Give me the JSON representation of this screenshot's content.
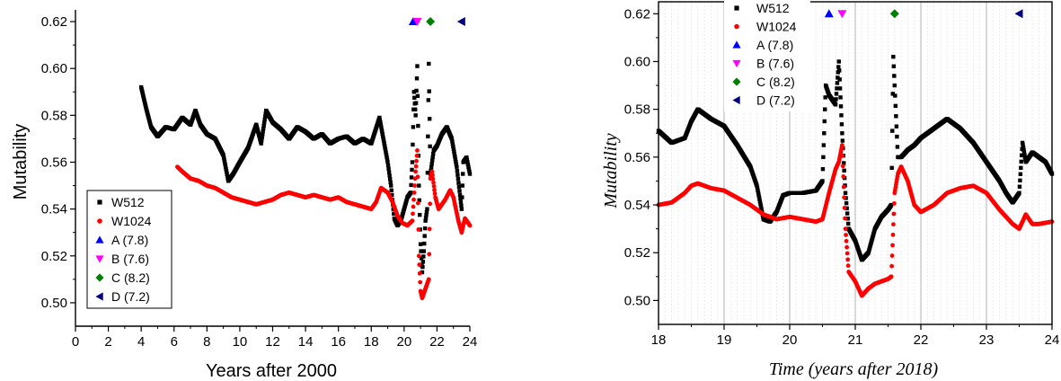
{
  "colors": {
    "W512": "#000000",
    "W1024": "#ff0000",
    "A": "#0000ff",
    "B": "#ff00ff",
    "C": "#008000",
    "D": "#000080"
  },
  "chart_data": [
    {
      "type": "scatter",
      "title": "",
      "xlabel": "Years after 2000",
      "ylabel": "Mutability",
      "xlim": [
        0,
        24
      ],
      "ylim": [
        0.49,
        0.625
      ],
      "xticks": [
        "0",
        "2",
        "4",
        "6",
        "8",
        "10",
        "12",
        "14",
        "16",
        "18",
        "20",
        "22",
        "24"
      ],
      "yticks": [
        "0.50",
        "0.52",
        "0.54",
        "0.56",
        "0.58",
        "0.60",
        "0.62"
      ],
      "legend_position": "bottom-left",
      "legend": [
        "W512",
        "W1024",
        "A (7.8)",
        "B (7.6)",
        "C (8.2)",
        "D (7.2)"
      ],
      "series": [
        {
          "name": "W512",
          "marker": "square",
          "points": [
            [
              4.0,
              0.592
            ],
            [
              4.3,
              0.583
            ],
            [
              4.6,
              0.575
            ],
            [
              5.0,
              0.571
            ],
            [
              5.5,
              0.575
            ],
            [
              6.0,
              0.574
            ],
            [
              6.5,
              0.579
            ],
            [
              7.0,
              0.576
            ],
            [
              7.3,
              0.582
            ],
            [
              7.6,
              0.576
            ],
            [
              8.0,
              0.572
            ],
            [
              8.5,
              0.57
            ],
            [
              9.0,
              0.563
            ],
            [
              9.3,
              0.552
            ],
            [
              9.6,
              0.555
            ],
            [
              10.0,
              0.56
            ],
            [
              10.5,
              0.566
            ],
            [
              11.0,
              0.576
            ],
            [
              11.3,
              0.568
            ],
            [
              11.6,
              0.582
            ],
            [
              12.0,
              0.577
            ],
            [
              12.5,
              0.574
            ],
            [
              13.0,
              0.57
            ],
            [
              13.5,
              0.575
            ],
            [
              14.0,
              0.573
            ],
            [
              14.5,
              0.57
            ],
            [
              15.0,
              0.572
            ],
            [
              15.5,
              0.568
            ],
            [
              16.0,
              0.57
            ],
            [
              16.5,
              0.571
            ],
            [
              17.0,
              0.568
            ],
            [
              17.5,
              0.57
            ],
            [
              18.0,
              0.568
            ],
            [
              18.5,
              0.579
            ],
            [
              19.0,
              0.56
            ],
            [
              19.2,
              0.55
            ],
            [
              19.4,
              0.536
            ],
            [
              19.6,
              0.533
            ],
            [
              19.8,
              0.535
            ],
            [
              20.0,
              0.54
            ],
            [
              20.2,
              0.545
            ],
            [
              20.4,
              0.547
            ],
            [
              20.5,
              0.56
            ],
            [
              20.6,
              0.59
            ],
            [
              20.7,
              0.58
            ],
            [
              20.8,
              0.601
            ],
            [
              20.9,
              0.55
            ],
            [
              21.0,
              0.525
            ],
            [
              21.1,
              0.513
            ],
            [
              21.2,
              0.522
            ],
            [
              21.3,
              0.535
            ],
            [
              21.4,
              0.54
            ],
            [
              21.5,
              0.602
            ],
            [
              21.6,
              0.555
            ],
            [
              21.8,
              0.565
            ],
            [
              22.0,
              0.567
            ],
            [
              22.3,
              0.572
            ],
            [
              22.6,
              0.575
            ],
            [
              22.9,
              0.57
            ],
            [
              23.2,
              0.558
            ],
            [
              23.4,
              0.546
            ],
            [
              23.5,
              0.54
            ],
            [
              23.6,
              0.56
            ],
            [
              23.8,
              0.562
            ],
            [
              24.0,
              0.555
            ]
          ]
        },
        {
          "name": "W1024",
          "marker": "circle",
          "points": [
            [
              6.2,
              0.558
            ],
            [
              6.5,
              0.556
            ],
            [
              7.0,
              0.553
            ],
            [
              7.5,
              0.552
            ],
            [
              8.0,
              0.55
            ],
            [
              8.5,
              0.549
            ],
            [
              9.0,
              0.547
            ],
            [
              9.5,
              0.545
            ],
            [
              10.0,
              0.544
            ],
            [
              10.5,
              0.543
            ],
            [
              11.0,
              0.542
            ],
            [
              11.5,
              0.543
            ],
            [
              12.0,
              0.544
            ],
            [
              12.5,
              0.546
            ],
            [
              13.0,
              0.547
            ],
            [
              13.5,
              0.546
            ],
            [
              14.0,
              0.545
            ],
            [
              14.5,
              0.546
            ],
            [
              15.0,
              0.545
            ],
            [
              15.5,
              0.544
            ],
            [
              16.0,
              0.545
            ],
            [
              16.5,
              0.543
            ],
            [
              17.0,
              0.542
            ],
            [
              17.5,
              0.541
            ],
            [
              18.0,
              0.54
            ],
            [
              18.3,
              0.543
            ],
            [
              18.6,
              0.549
            ],
            [
              19.0,
              0.547
            ],
            [
              19.3,
              0.543
            ],
            [
              19.6,
              0.537
            ],
            [
              19.9,
              0.534
            ],
            [
              20.2,
              0.533
            ],
            [
              20.5,
              0.535
            ],
            [
              20.7,
              0.556
            ],
            [
              20.8,
              0.565
            ],
            [
              20.9,
              0.52
            ],
            [
              21.0,
              0.505
            ],
            [
              21.1,
              0.502
            ],
            [
              21.3,
              0.506
            ],
            [
              21.5,
              0.51
            ],
            [
              21.6,
              0.553
            ],
            [
              21.7,
              0.556
            ],
            [
              21.9,
              0.545
            ],
            [
              22.1,
              0.54
            ],
            [
              22.5,
              0.544
            ],
            [
              22.8,
              0.548
            ],
            [
              23.0,
              0.545
            ],
            [
              23.3,
              0.535
            ],
            [
              23.5,
              0.53
            ],
            [
              23.7,
              0.536
            ],
            [
              24.0,
              0.533
            ]
          ]
        }
      ],
      "events": [
        {
          "name": "A (7.8)",
          "marker": "triangle-up",
          "x": 20.55,
          "y": 0.62
        },
        {
          "name": "B (7.6)",
          "marker": "triangle-down",
          "x": 20.8,
          "y": 0.62
        },
        {
          "name": "C (8.2)",
          "marker": "diamond",
          "x": 21.6,
          "y": 0.62
        },
        {
          "name": "D (7.2)",
          "marker": "triangle-left",
          "x": 23.5,
          "y": 0.62
        }
      ]
    },
    {
      "type": "scatter",
      "title": "",
      "xlabel": "Time (years after 2018)",
      "ylabel": "Mutability",
      "xlim": [
        18,
        24
      ],
      "ylim": [
        0.49,
        0.625
      ],
      "xticks": [
        "18",
        "19",
        "20",
        "21",
        "22",
        "23",
        "24"
      ],
      "yticks": [
        "0.50",
        "0.52",
        "0.54",
        "0.56",
        "0.58",
        "0.60",
        "0.62"
      ],
      "grid": true,
      "legend_position": "top-left",
      "legend": [
        "W512",
        "W1024",
        "A (7.8)",
        "B (7.6)",
        "C (8.2)",
        "D (7.2)"
      ],
      "series": [
        {
          "name": "W512",
          "marker": "square",
          "points": [
            [
              18.0,
              0.571
            ],
            [
              18.2,
              0.566
            ],
            [
              18.4,
              0.568
            ],
            [
              18.5,
              0.575
            ],
            [
              18.6,
              0.58
            ],
            [
              18.8,
              0.576
            ],
            [
              19.0,
              0.573
            ],
            [
              19.2,
              0.565
            ],
            [
              19.4,
              0.556
            ],
            [
              19.5,
              0.548
            ],
            [
              19.6,
              0.534
            ],
            [
              19.7,
              0.533
            ],
            [
              19.8,
              0.537
            ],
            [
              19.9,
              0.544
            ],
            [
              20.0,
              0.545
            ],
            [
              20.2,
              0.545
            ],
            [
              20.4,
              0.546
            ],
            [
              20.5,
              0.55
            ],
            [
              20.55,
              0.59
            ],
            [
              20.6,
              0.586
            ],
            [
              20.7,
              0.582
            ],
            [
              20.75,
              0.6
            ],
            [
              20.8,
              0.57
            ],
            [
              20.85,
              0.545
            ],
            [
              20.9,
              0.53
            ],
            [
              21.0,
              0.525
            ],
            [
              21.1,
              0.517
            ],
            [
              21.2,
              0.52
            ],
            [
              21.3,
              0.53
            ],
            [
              21.4,
              0.535
            ],
            [
              21.5,
              0.538
            ],
            [
              21.55,
              0.54
            ],
            [
              21.58,
              0.602
            ],
            [
              21.6,
              0.59
            ],
            [
              21.65,
              0.56
            ],
            [
              21.7,
              0.56
            ],
            [
              21.8,
              0.563
            ],
            [
              21.9,
              0.565
            ],
            [
              22.0,
              0.568
            ],
            [
              22.2,
              0.572
            ],
            [
              22.4,
              0.576
            ],
            [
              22.5,
              0.574
            ],
            [
              22.6,
              0.572
            ],
            [
              22.8,
              0.566
            ],
            [
              23.0,
              0.558
            ],
            [
              23.2,
              0.55
            ],
            [
              23.3,
              0.545
            ],
            [
              23.4,
              0.541
            ],
            [
              23.5,
              0.545
            ],
            [
              23.55,
              0.566
            ],
            [
              23.6,
              0.558
            ],
            [
              23.7,
              0.562
            ],
            [
              23.8,
              0.56
            ],
            [
              23.9,
              0.558
            ],
            [
              24.0,
              0.553
            ]
          ]
        },
        {
          "name": "W1024",
          "marker": "circle",
          "points": [
            [
              18.0,
              0.54
            ],
            [
              18.2,
              0.541
            ],
            [
              18.4,
              0.545
            ],
            [
              18.5,
              0.548
            ],
            [
              18.6,
              0.549
            ],
            [
              18.8,
              0.547
            ],
            [
              19.0,
              0.546
            ],
            [
              19.2,
              0.543
            ],
            [
              19.4,
              0.54
            ],
            [
              19.6,
              0.536
            ],
            [
              19.8,
              0.534
            ],
            [
              20.0,
              0.535
            ],
            [
              20.2,
              0.534
            ],
            [
              20.4,
              0.533
            ],
            [
              20.5,
              0.534
            ],
            [
              20.6,
              0.545
            ],
            [
              20.7,
              0.555
            ],
            [
              20.75,
              0.558
            ],
            [
              20.8,
              0.565
            ],
            [
              20.85,
              0.53
            ],
            [
              20.9,
              0.512
            ],
            [
              21.0,
              0.508
            ],
            [
              21.1,
              0.502
            ],
            [
              21.2,
              0.505
            ],
            [
              21.3,
              0.507
            ],
            [
              21.4,
              0.508
            ],
            [
              21.5,
              0.509
            ],
            [
              21.55,
              0.51
            ],
            [
              21.6,
              0.545
            ],
            [
              21.65,
              0.553
            ],
            [
              21.7,
              0.556
            ],
            [
              21.8,
              0.55
            ],
            [
              21.9,
              0.54
            ],
            [
              22.0,
              0.537
            ],
            [
              22.2,
              0.54
            ],
            [
              22.4,
              0.545
            ],
            [
              22.6,
              0.547
            ],
            [
              22.8,
              0.548
            ],
            [
              23.0,
              0.545
            ],
            [
              23.2,
              0.538
            ],
            [
              23.4,
              0.532
            ],
            [
              23.5,
              0.53
            ],
            [
              23.6,
              0.536
            ],
            [
              23.7,
              0.532
            ],
            [
              23.8,
              0.532
            ],
            [
              24.0,
              0.533
            ]
          ]
        }
      ],
      "events": [
        {
          "name": "A (7.8)",
          "marker": "triangle-up",
          "x": 20.6,
          "y": 0.62
        },
        {
          "name": "B (7.6)",
          "marker": "triangle-down",
          "x": 20.8,
          "y": 0.62
        },
        {
          "name": "C (8.2)",
          "marker": "diamond",
          "x": 21.6,
          "y": 0.62
        },
        {
          "name": "D (7.2)",
          "marker": "triangle-left",
          "x": 23.5,
          "y": 0.62
        }
      ]
    }
  ]
}
